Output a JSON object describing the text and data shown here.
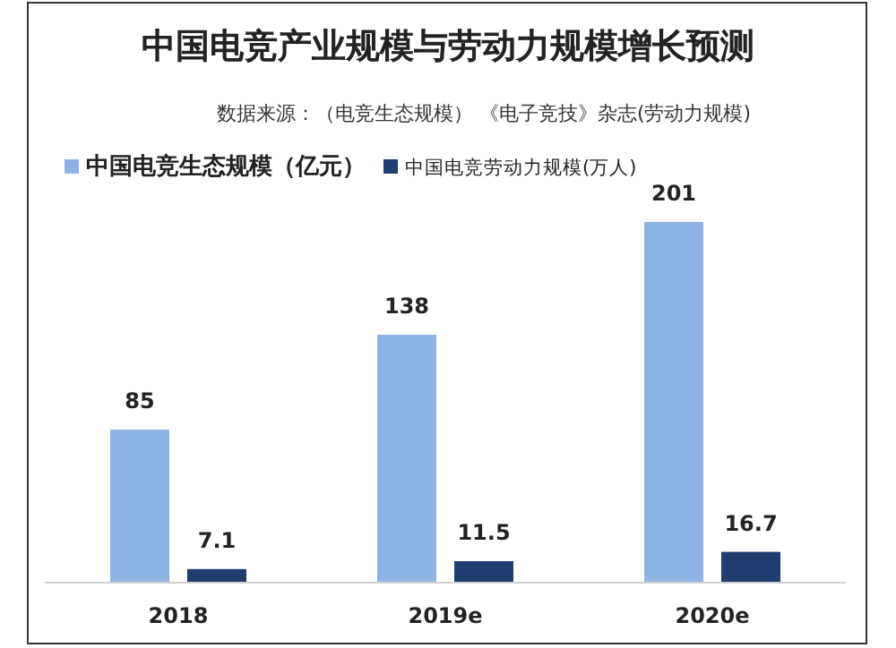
{
  "chart_data": {
    "type": "bar",
    "title": "中国电竞产业规模与劳动力规模增长预测",
    "annotations": [
      "数据来源：（电竞生态规模） 《电子竞技》杂志(劳动力规模)"
    ],
    "categories": [
      "2018",
      "2019e",
      "2020e"
    ],
    "series": [
      {
        "name": "中国电竞生态规模（亿元）",
        "color": "#8db3e2",
        "values": [
          85,
          138,
          201
        ]
      },
      {
        "name": "中国电竞劳动力规模(万人)",
        "color": "#1f3d6e",
        "values": [
          7.1,
          11.5,
          16.7
        ]
      }
    ],
    "data_labels": true,
    "legend": "top left"
  }
}
